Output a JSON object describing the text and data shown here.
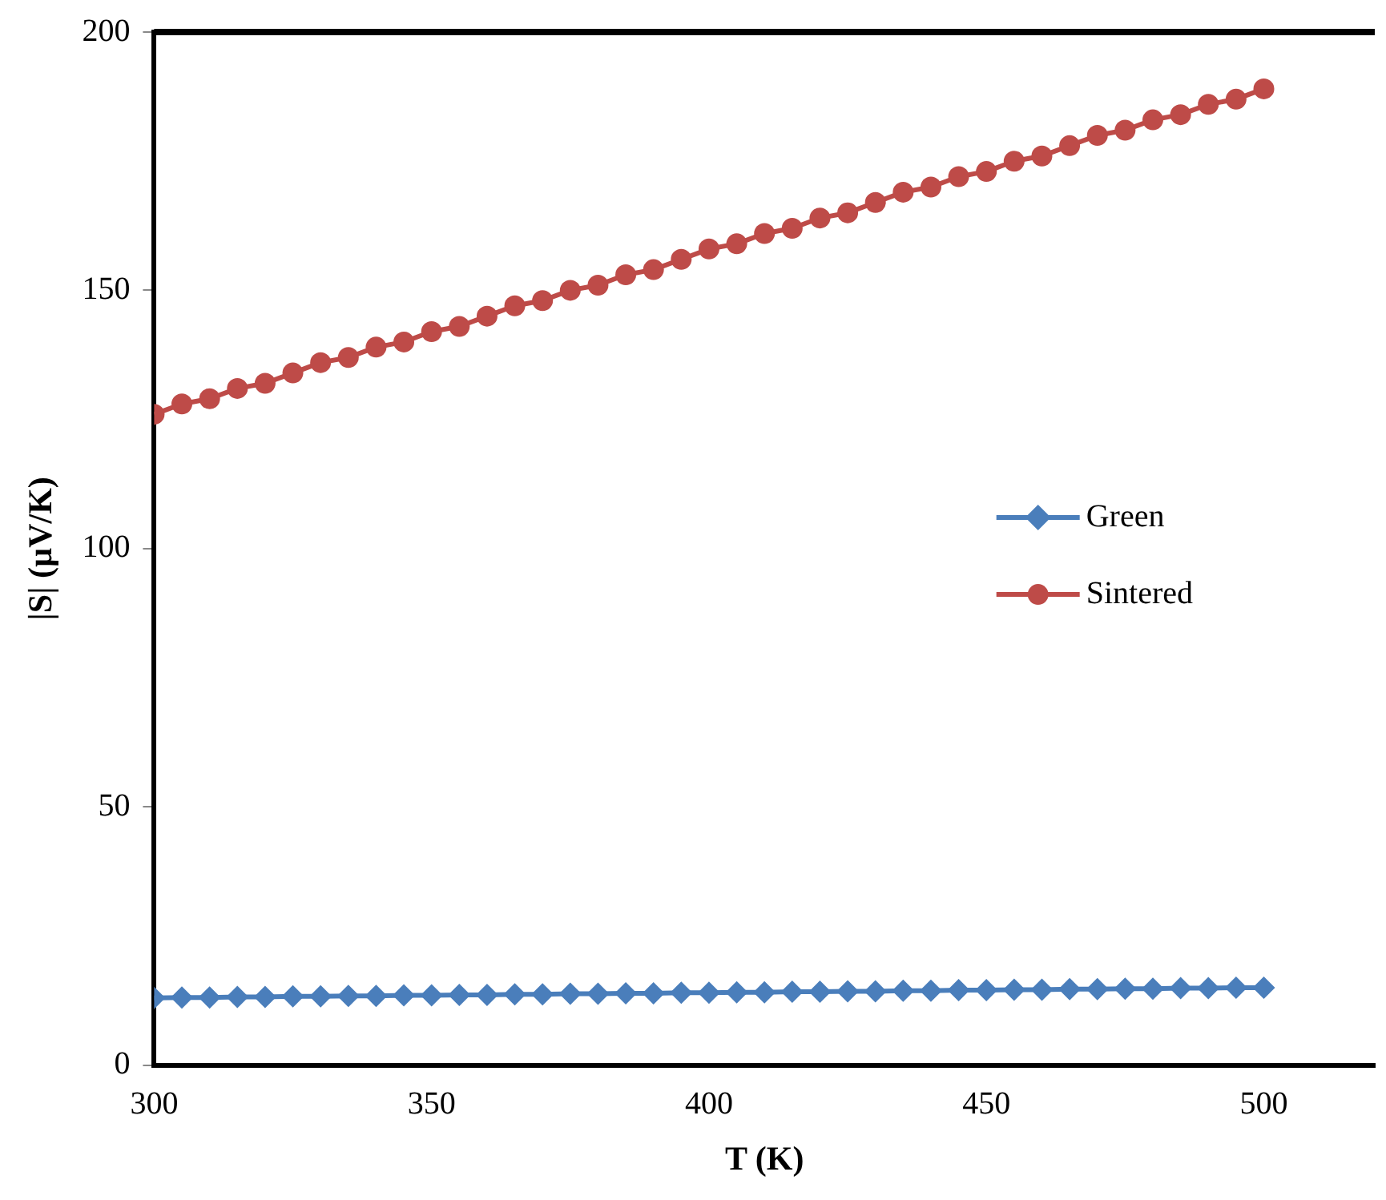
{
  "chart_data": {
    "type": "line",
    "xlabel": "T (K)",
    "ylabel": "|S| (µV/K)",
    "x": [
      300,
      305,
      310,
      315,
      320,
      325,
      330,
      335,
      340,
      345,
      350,
      355,
      360,
      365,
      370,
      375,
      380,
      385,
      390,
      395,
      400,
      405,
      410,
      415,
      420,
      425,
      430,
      435,
      440,
      445,
      450,
      455,
      460,
      465,
      470,
      475,
      480,
      485,
      490,
      495,
      500
    ],
    "series": [
      {
        "name": "Green",
        "color": "#4a7ebb",
        "marker": "diamond",
        "values": [
          13,
          13.1,
          13.1,
          13.2,
          13.2,
          13.3,
          13.3,
          13.4,
          13.4,
          13.5,
          13.5,
          13.6,
          13.6,
          13.7,
          13.7,
          13.8,
          13.8,
          13.9,
          13.9,
          14,
          14,
          14.1,
          14.1,
          14.2,
          14.2,
          14.3,
          14.3,
          14.4,
          14.4,
          14.5,
          14.5,
          14.6,
          14.6,
          14.7,
          14.7,
          14.8,
          14.8,
          14.9,
          14.9,
          15,
          15
        ]
      },
      {
        "name": "Sintered",
        "color": "#be4b48",
        "marker": "circle",
        "values": [
          126,
          128,
          129,
          131,
          132,
          134,
          136,
          137,
          139,
          140,
          142,
          143,
          145,
          147,
          148,
          150,
          151,
          153,
          154,
          156,
          158,
          159,
          161,
          162,
          164,
          165,
          167,
          169,
          170,
          172,
          173,
          175,
          176,
          178,
          180,
          181,
          183,
          184,
          186,
          187,
          189
        ]
      }
    ],
    "xlim": [
      300,
      520
    ],
    "xticks": [
      300,
      350,
      400,
      450,
      500
    ],
    "ylim": [
      0,
      200
    ],
    "yticks": [
      0,
      50,
      100,
      150,
      200
    ],
    "grid": false,
    "legend": "right",
    "line_style": "solid"
  }
}
